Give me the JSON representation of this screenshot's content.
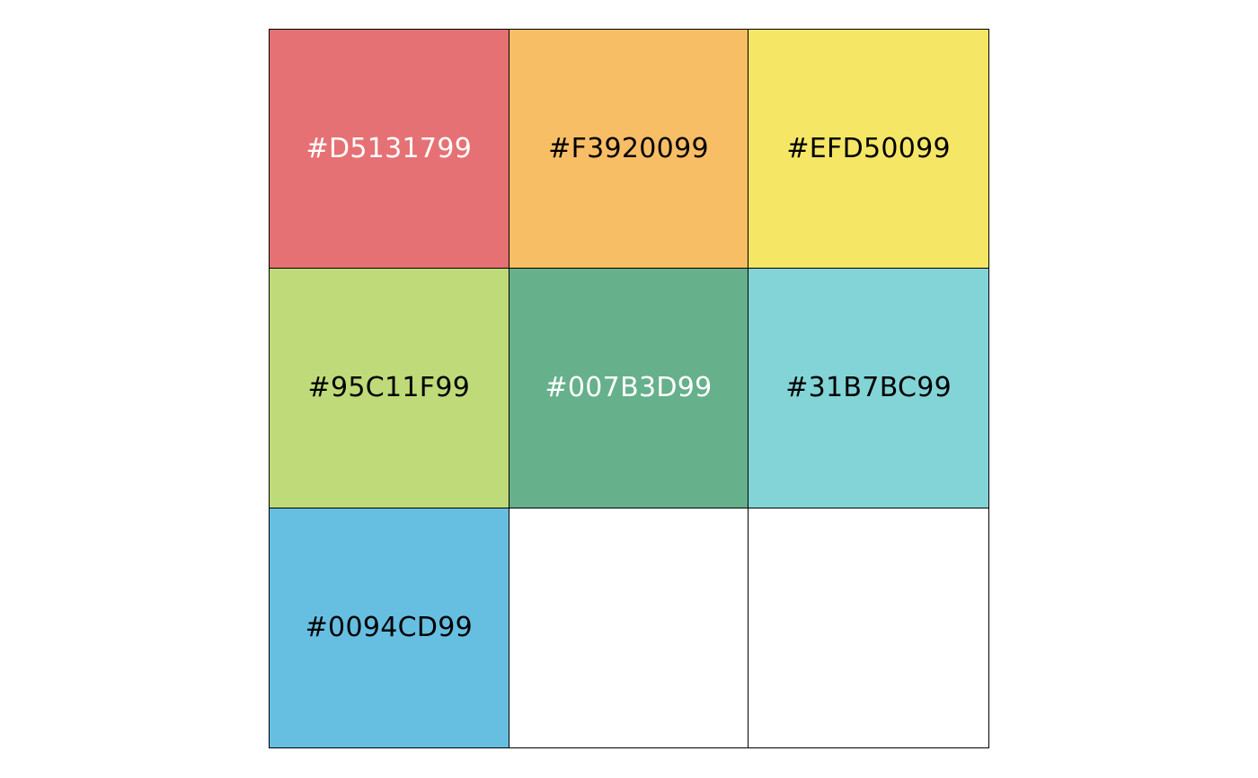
{
  "swatches": [
    {
      "label": "#D5131799",
      "fill": "#D51317",
      "alpha": 0.6,
      "text_color": "#FFFFFF"
    },
    {
      "label": "#F3920099",
      "fill": "#F39200",
      "alpha": 0.6,
      "text_color": "#000000"
    },
    {
      "label": "#EFD50099",
      "fill": "#EFD500",
      "alpha": 0.6,
      "text_color": "#000000"
    },
    {
      "label": "#95C11F99",
      "fill": "#95C11F",
      "alpha": 0.6,
      "text_color": "#000000"
    },
    {
      "label": "#007B3D99",
      "fill": "#007B3D",
      "alpha": 0.6,
      "text_color": "#FFFFFF"
    },
    {
      "label": "#31B7BC99",
      "fill": "#31B7BC",
      "alpha": 0.6,
      "text_color": "#000000"
    },
    {
      "label": "#0094CD99",
      "fill": "#0094CD",
      "alpha": 0.6,
      "text_color": "#000000"
    },
    {
      "label": "",
      "fill": "#FFFFFF",
      "alpha": 1,
      "text_color": "#000000"
    },
    {
      "label": "",
      "fill": "#FFFFFF",
      "alpha": 1,
      "text_color": "#000000"
    }
  ]
}
